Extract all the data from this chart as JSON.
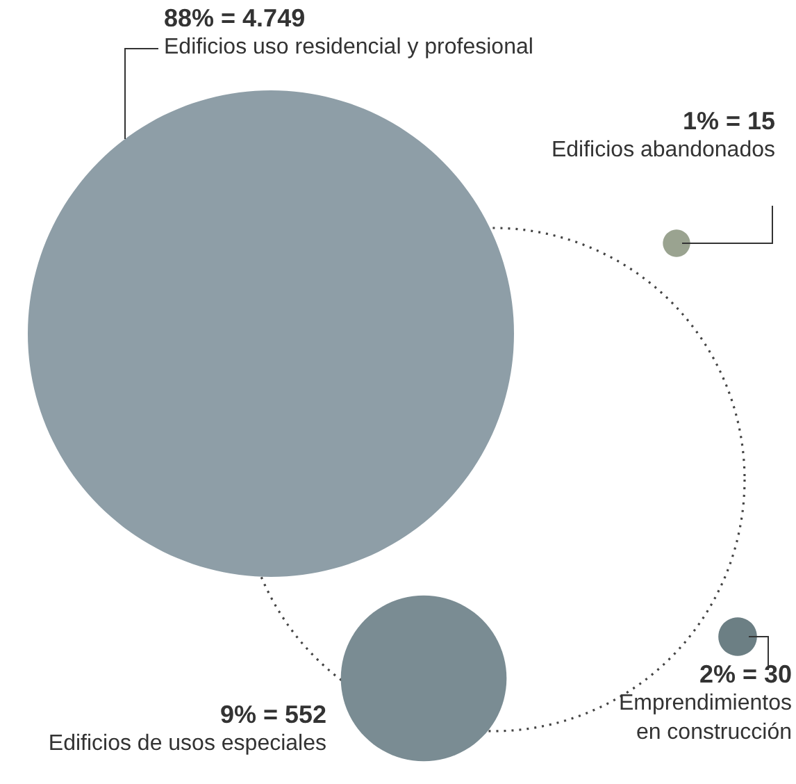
{
  "chart_data": {
    "type": "other",
    "categories": [
      "Edificios uso residencial y profesional",
      "Edificios abandonados",
      "Emprendimientos\nen construcción",
      "Edificios de usos especiales"
    ],
    "values": [
      4749,
      15,
      30,
      552
    ],
    "value_labels": [
      "88% = 4.749",
      "1% = 15",
      "2% = 30",
      "9% = 552"
    ],
    "colors": [
      "#8e9ea7",
      "#9aa390",
      "#6c7f84",
      "#7a8c93"
    ]
  }
}
